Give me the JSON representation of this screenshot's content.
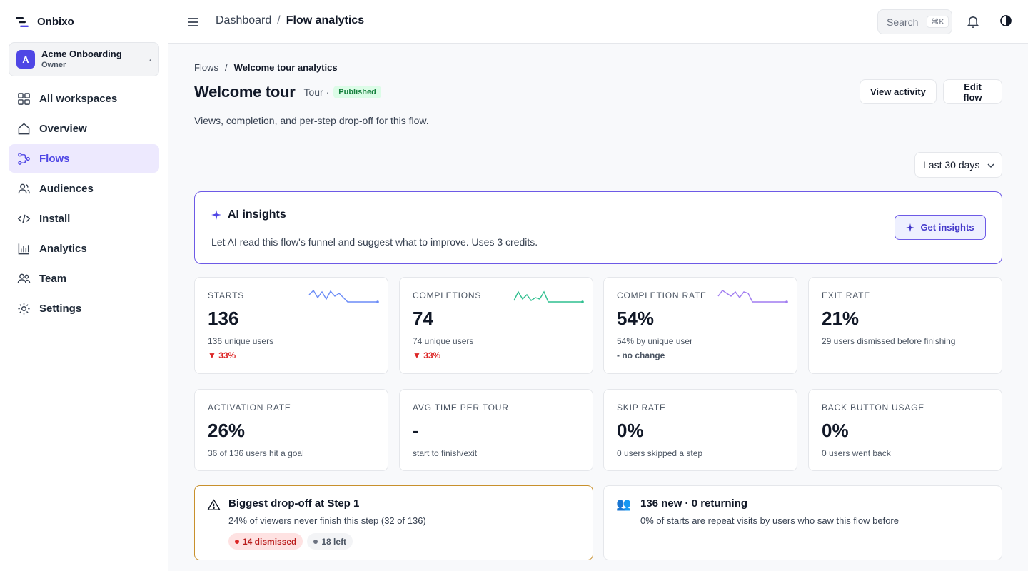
{
  "app": {
    "name": "Onbixo"
  },
  "workspace": {
    "initial": "A",
    "name": "Acme Onboarding",
    "role": "Owner"
  },
  "nav": [
    {
      "label": "All workspaces",
      "icon": "grid-icon"
    },
    {
      "label": "Overview",
      "icon": "home-icon"
    },
    {
      "label": "Flows",
      "icon": "flow-icon",
      "active": true
    },
    {
      "label": "Audiences",
      "icon": "users-icon"
    },
    {
      "label": "Install",
      "icon": "code-icon"
    },
    {
      "label": "Analytics",
      "icon": "bar-chart-icon"
    },
    {
      "label": "Team",
      "icon": "team-icon"
    },
    {
      "label": "Settings",
      "icon": "gear-icon"
    }
  ],
  "topbar": {
    "breadcrumb": [
      "Dashboard",
      "Flow analytics"
    ],
    "separator": "/",
    "search_label": "Search",
    "search_shortcut": "⌘K"
  },
  "page": {
    "breadcrumb": [
      "Flows",
      "Welcome tour analytics"
    ],
    "separator": "/",
    "title": "Welcome tour",
    "type": "Tour ·",
    "status": "Published",
    "description": "Views, completion, and per-step drop-off for this flow.",
    "actions": {
      "view_activity": "View activity",
      "edit_flow": "Edit flow"
    },
    "date_range": "Last 30 days"
  },
  "ai": {
    "title": "AI insights",
    "description": "Let AI read this flow's funnel and suggest what to improve. Uses 3 credits.",
    "button": "Get insights"
  },
  "metrics": [
    {
      "label": "STARTS",
      "value": "136",
      "sub": "136 unique users",
      "delta": "▼ 33%",
      "delta_type": "down",
      "spark_color": "#6b8cf7",
      "spark": [
        8,
        2,
        12,
        4,
        14,
        3,
        10,
        6,
        12,
        18,
        18,
        18,
        18,
        18,
        18,
        18,
        18
      ]
    },
    {
      "label": "COMPLETIONS",
      "value": "74",
      "sub": "74 unique users",
      "delta": "▼ 33%",
      "delta_type": "down",
      "spark_color": "#2fbf8f",
      "spark": [
        16,
        4,
        14,
        8,
        16,
        12,
        14,
        4,
        18,
        18,
        18,
        18,
        18,
        18,
        18,
        18,
        18
      ]
    },
    {
      "label": "COMPLETION RATE",
      "value": "54%",
      "sub": "54% by unique user",
      "delta": "- no change",
      "delta_type": "flat",
      "spark_color": "#a07cf0",
      "spark": [
        10,
        2,
        6,
        10,
        4,
        12,
        4,
        6,
        18,
        18,
        18,
        18,
        18,
        18,
        18,
        18,
        18
      ]
    },
    {
      "label": "EXIT RATE",
      "value": "21%",
      "sub": "29 users dismissed before finishing"
    },
    {
      "label": "ACTIVATION RATE",
      "value": "26%",
      "sub": "36 of 136 users hit a goal"
    },
    {
      "label": "AVG TIME PER TOUR",
      "value": "-",
      "sub": "start to finish/exit"
    },
    {
      "label": "SKIP RATE",
      "value": "0%",
      "sub": "0 users skipped a step"
    },
    {
      "label": "BACK BUTTON USAGE",
      "value": "0%",
      "sub": "0 users went back"
    }
  ],
  "dropoff": {
    "title": "Biggest drop-off at Step 1",
    "description": "24% of viewers never finish this step (32 of 136)",
    "dismissed": "14 dismissed",
    "left": "18 left"
  },
  "returning": {
    "icon": "👥",
    "title": "136 new · 0 returning",
    "description": "0% of starts are repeat visits by users who saw this flow before"
  }
}
